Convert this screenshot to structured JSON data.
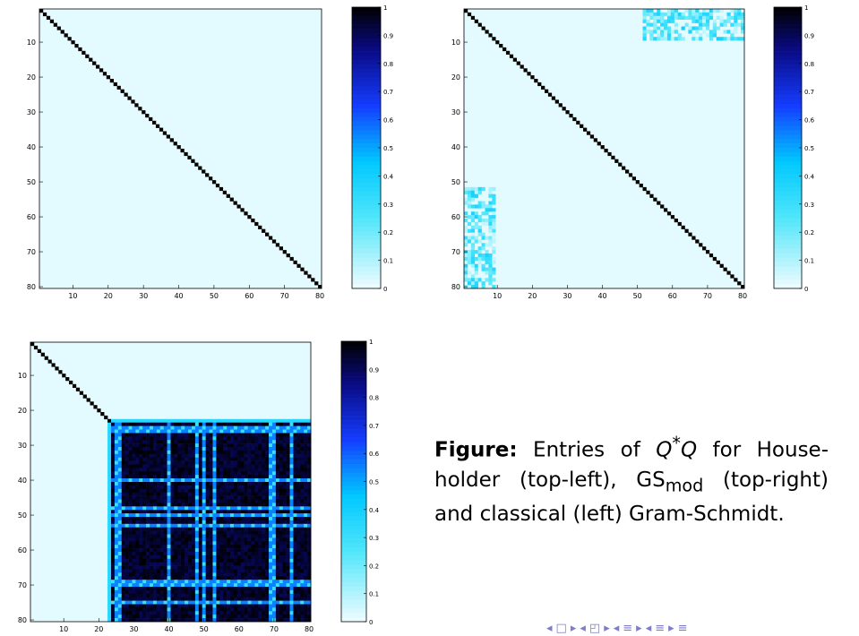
{
  "colorbar_ticks": [
    "0",
    "0.1",
    "0.2",
    "0.3",
    "0.4",
    "0.5",
    "0.6",
    "0.7",
    "0.8",
    "0.9",
    "1"
  ],
  "chart_data": [
    {
      "type": "heatmap",
      "name": "Householder",
      "n": 80,
      "pattern": "identity",
      "xticks": [
        10,
        20,
        30,
        40,
        50,
        60,
        70,
        80
      ],
      "yticks": [
        10,
        20,
        30,
        40,
        50,
        60,
        70,
        80
      ],
      "xlim": [
        1,
        80
      ],
      "ylim": [
        1,
        80
      ],
      "clim": [
        0,
        1
      ],
      "colormap": "inverted jet-like (light cyan → cyan → blue → black)",
      "background_value": 0.02,
      "diagonal_value": 1.0
    },
    {
      "type": "heatmap",
      "name": "GS_mod",
      "n": 80,
      "pattern": "identity with off-diagonal corner blocks",
      "xticks": [
        10,
        20,
        30,
        40,
        50,
        60,
        70,
        80
      ],
      "yticks": [
        10,
        20,
        30,
        40,
        50,
        60,
        70,
        80
      ],
      "xlim": [
        1,
        80
      ],
      "ylim": [
        1,
        80
      ],
      "clim": [
        0,
        1
      ],
      "background_value": 0.02,
      "diagonal_value": 1.0,
      "corner_blocks": [
        {
          "rows": [
            1,
            9
          ],
          "cols": [
            52,
            80
          ],
          "value_range": [
            0.05,
            0.4
          ]
        },
        {
          "rows": [
            52,
            80
          ],
          "cols": [
            1,
            9
          ],
          "value_range": [
            0.05,
            0.4
          ]
        }
      ]
    },
    {
      "type": "heatmap",
      "name": "classical",
      "n": 80,
      "pattern": "identity for first ~23 columns then dense block",
      "xticks": [
        10,
        20,
        30,
        40,
        50,
        60,
        70,
        80
      ],
      "yticks": [
        10,
        20,
        30,
        40,
        50,
        60,
        70,
        80
      ],
      "xlim": [
        1,
        80
      ],
      "ylim": [
        1,
        80
      ],
      "clim": [
        0,
        1
      ],
      "background_value": 0.02,
      "diagonal_value": 1.0,
      "dense_block_start": 24,
      "dense_block_value_range": [
        0.75,
        1.0
      ],
      "dense_block_stripes": [
        25,
        26,
        40,
        48,
        50,
        53,
        69,
        70,
        75
      ]
    }
  ],
  "caption": {
    "label": "Figure:",
    "text_a": " Entries of ",
    "math": "Q",
    "math_sup": "*",
    "math2": "Q",
    "text_b": " for House-holder (top-left), GS",
    "sub": "mod",
    "text_c": " (top-right) and classical (left) Gram-Schmidt."
  },
  "nav_symbols": [
    "◂",
    "□",
    "▸",
    "◂",
    "◰",
    "▸",
    "◂",
    "≡",
    "▸",
    "◂",
    "≡",
    "▸",
    "≡"
  ]
}
